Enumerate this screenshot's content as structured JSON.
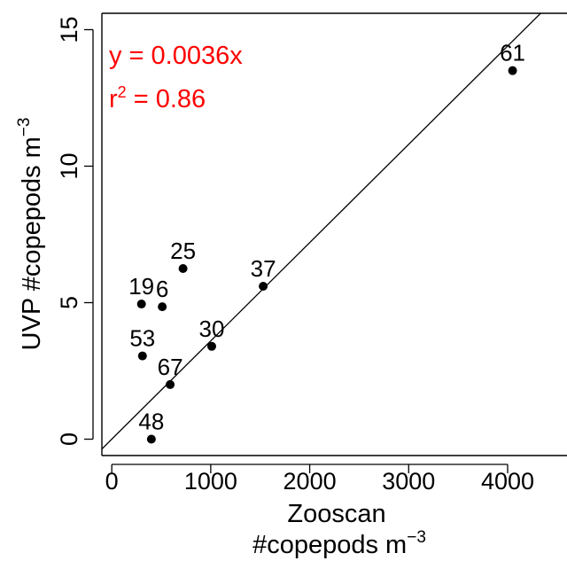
{
  "chart_data": {
    "type": "scatter",
    "title": "",
    "xlabel_line1": "Zooscan",
    "xlabel_line2_base": "#copepods m",
    "xlabel_line2_exp": "−3",
    "ylabel_base": "UVP #copepods m",
    "ylabel_exp": "−3",
    "xlim": [
      -100,
      4600
    ],
    "ylim": [
      -0.6,
      15.6
    ],
    "x_ticks": [
      0,
      1000,
      2000,
      3000,
      4000
    ],
    "x_tick_labels": [
      "0",
      "1000",
      "2000",
      "3000",
      "4000"
    ],
    "y_ticks": [
      0,
      5,
      10,
      15
    ],
    "y_tick_labels": [
      "0",
      "5",
      "10",
      "15"
    ],
    "grid": false,
    "points": [
      {
        "label": "61",
        "x": 4050,
        "y": 13.5
      },
      {
        "label": "25",
        "x": 720,
        "y": 6.25
      },
      {
        "label": "37",
        "x": 1530,
        "y": 5.6
      },
      {
        "label": "19",
        "x": 300,
        "y": 4.95
      },
      {
        "label": "6",
        "x": 510,
        "y": 4.85
      },
      {
        "label": "30",
        "x": 1010,
        "y": 3.4
      },
      {
        "label": "53",
        "x": 310,
        "y": 3.05
      },
      {
        "label": "67",
        "x": 590,
        "y": 2.0
      },
      {
        "label": "48",
        "x": 400,
        "y": 0.0
      }
    ],
    "fit": {
      "slope": 0.0036,
      "intercept": 0
    },
    "annotations": {
      "equation": "y = 0.0036x",
      "r2_base": "r",
      "r2_sup": "2",
      "r2_rest": " = 0.86",
      "color": "#ff0000"
    }
  }
}
